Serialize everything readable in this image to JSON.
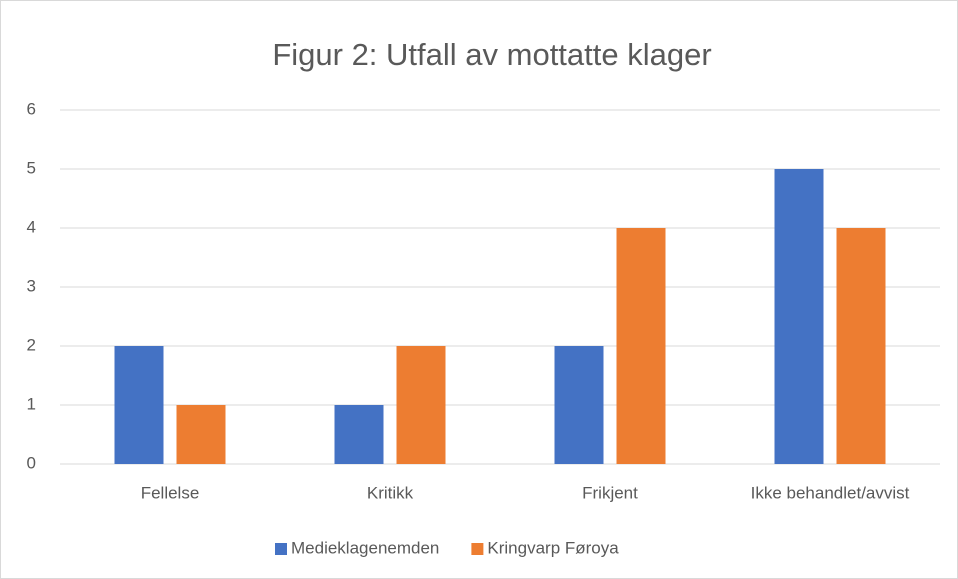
{
  "chart_data": {
    "type": "bar",
    "title": "Figur 2: Utfall av mottatte klager",
    "categories": [
      "Fellelse",
      "Kritikk",
      "Frikjent",
      "Ikke behandlet/avvist"
    ],
    "series": [
      {
        "name": "Medieklagenemden",
        "color": "#4472c4",
        "values": [
          2,
          1,
          2,
          5
        ]
      },
      {
        "name": "Kringvarp Føroya",
        "color": "#ed7d31",
        "values": [
          1,
          2,
          4,
          4
        ]
      }
    ],
    "ylim": [
      0,
      6
    ],
    "yticks": [
      0,
      1,
      2,
      3,
      4,
      5,
      6
    ],
    "grid": true,
    "legend": "bottom"
  }
}
